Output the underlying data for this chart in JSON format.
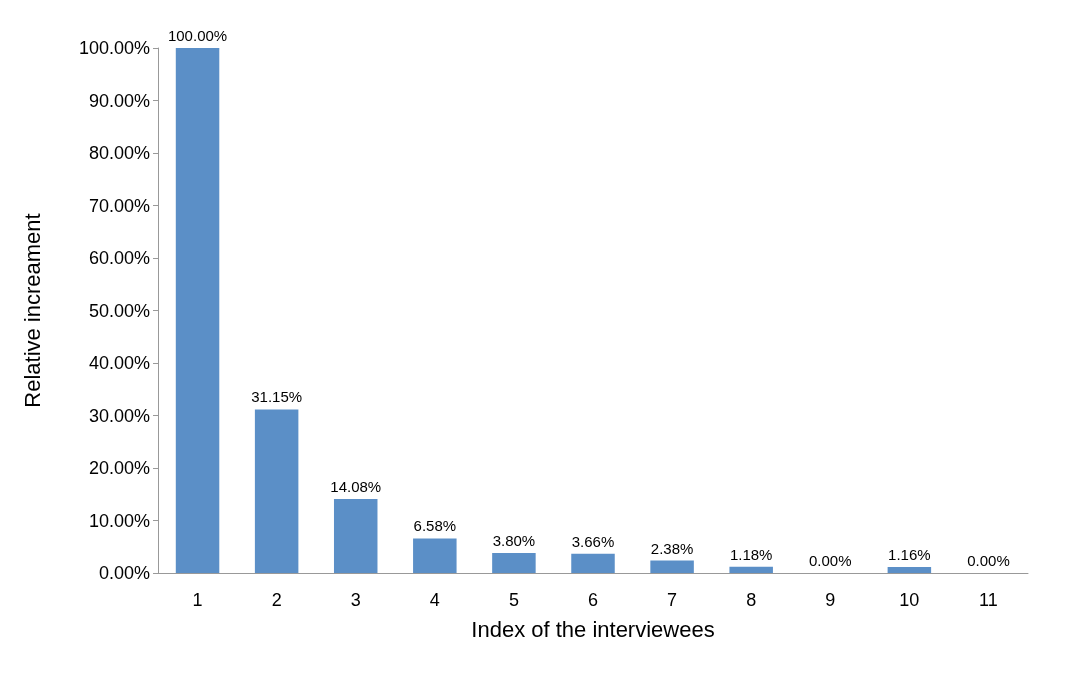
{
  "chart_data": {
    "type": "bar",
    "xlabel": "Index of the interviewees",
    "ylabel": "Relative increament",
    "categories": [
      "1",
      "2",
      "3",
      "4",
      "5",
      "6",
      "7",
      "8",
      "9",
      "10",
      "11"
    ],
    "values": [
      100,
      31.15,
      14.08,
      6.58,
      3.8,
      3.66,
      2.38,
      1.18,
      0,
      1.16,
      0
    ],
    "value_labels": [
      "100.00%",
      "31.15%",
      "14.08%",
      "6.58%",
      "3.80%",
      "3.66%",
      "2.38%",
      "1.18%",
      "0.00%",
      "1.16%",
      "0.00%"
    ],
    "color": "#5b8fc7",
    "ylim": [
      0,
      100
    ],
    "yticks": [
      {
        "value": 0,
        "label": "0.00%"
      },
      {
        "value": 10,
        "label": "10.00%"
      },
      {
        "value": 20,
        "label": "20.00%"
      },
      {
        "value": 30,
        "label": "30.00%"
      },
      {
        "value": 40,
        "label": "40.00%"
      },
      {
        "value": 50,
        "label": "50.00%"
      },
      {
        "value": 60,
        "label": "60.00%"
      },
      {
        "value": 70,
        "label": "70.00%"
      },
      {
        "value": 80,
        "label": "80.00%"
      },
      {
        "value": 90,
        "label": "90.00%"
      },
      {
        "value": 100,
        "label": "100.00%"
      }
    ],
    "grid": false
  }
}
